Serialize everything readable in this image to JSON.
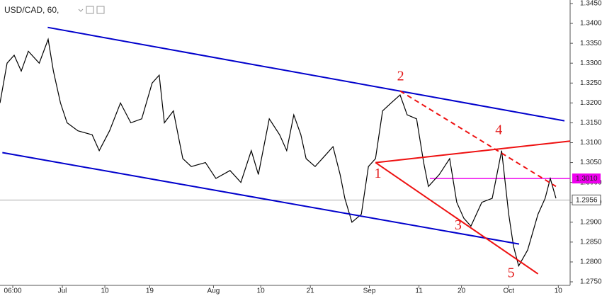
{
  "chart_data": {
    "type": "line",
    "title": "USD/CAD, 60,",
    "x": [
      -12.2,
      -10.7,
      -9.2,
      -7.7,
      -6.2,
      -3.9,
      -2.0,
      -0.9,
      0.6,
      2.0,
      4.3,
      7.3,
      8.8,
      11.0,
      13.3,
      15.5,
      17.8,
      20.0,
      21.5,
      22.6,
      24.5,
      26.5,
      28.3,
      31.3,
      33.5,
      36.5,
      38.8,
      41.0,
      42.5,
      44.8,
      47.0,
      48.5,
      50.0,
      51.5,
      52.6,
      54.5,
      56.8,
      58.3,
      59.8,
      60.8,
      62.3,
      64.3,
      65.8,
      67.3,
      68.8,
      70.6,
      72.5,
      74.0,
      76.0,
      77.5,
      78.5,
      80.8,
      83.0,
      84.5,
      86.0,
      87.5,
      89.8,
      92.0,
      94.0,
      95.5,
      96.5,
      97.6,
      99.5,
      101.7,
      103.2,
      104.3,
      105.5
    ],
    "series": [
      {
        "color": "#000000",
        "values": [
          1.32,
          1.33,
          1.332,
          1.328,
          1.333,
          1.33,
          1.336,
          1.328,
          1.32,
          1.315,
          1.313,
          1.312,
          1.308,
          1.313,
          1.32,
          1.315,
          1.316,
          1.325,
          1.327,
          1.315,
          1.318,
          1.306,
          1.304,
          1.305,
          1.301,
          1.303,
          1.3,
          1.308,
          1.302,
          1.316,
          1.312,
          1.308,
          1.317,
          1.312,
          1.306,
          1.304,
          1.307,
          1.309,
          1.302,
          1.296,
          1.29,
          1.292,
          1.304,
          1.306,
          1.318,
          1.32,
          1.322,
          1.317,
          1.316,
          1.305,
          1.299,
          1.302,
          1.306,
          1.295,
          1.291,
          1.289,
          1.295,
          1.296,
          1.308,
          1.292,
          1.284,
          1.279,
          1.283,
          1.292,
          1.296,
          1.301,
          1.296
        ]
      }
    ],
    "xlim": [
      -12.2,
      108.5
    ],
    "xticks": [
      {
        "value": -9.5,
        "label": "06:00"
      },
      {
        "value": 1,
        "label": "Jul"
      },
      10,
      {
        "value": 19.5,
        "label": "19"
      },
      {
        "value": 33,
        "label": "Aug"
      },
      {
        "value": 43,
        "label": "10"
      },
      {
        "value": 53.5,
        "label": "21"
      },
      {
        "value": 66,
        "label": "Sep"
      },
      {
        "value": 76.5,
        "label": "11"
      },
      {
        "value": 85.5,
        "label": "20"
      },
      {
        "value": 95.5,
        "label": "Oct"
      },
      {
        "value": 106,
        "label": "10"
      }
    ],
    "ylim": [
      1.275,
      1.345
    ],
    "yticks": [
      {
        "value": 1.275,
        "label": "1.2750"
      },
      {
        "value": 1.28,
        "label": "1.2800"
      },
      {
        "value": 1.285,
        "label": "1.2850"
      },
      {
        "value": 1.29,
        "label": "1.2900"
      },
      {
        "value": 1.295,
        "label": "1.2950"
      },
      {
        "value": 1.3,
        "label": "1.3000"
      },
      {
        "value": 1.305,
        "label": "1.3050"
      },
      {
        "value": 1.31,
        "label": "1.3100"
      },
      {
        "value": 1.315,
        "label": "1.3150"
      },
      {
        "value": 1.32,
        "label": "1.3200"
      },
      {
        "value": 1.325,
        "label": "1.3250"
      },
      {
        "value": 1.33,
        "label": "1.3300"
      },
      {
        "value": 1.335,
        "label": "1.3350"
      },
      {
        "value": 1.34,
        "label": "1.3400"
      },
      {
        "value": 1.345,
        "label": "1.3450"
      }
    ],
    "lines": [
      {
        "color": "#0000cc",
        "dash": false,
        "x": [
          -2.1,
          107.3
        ],
        "y": [
          1.339,
          1.3155
        ]
      },
      {
        "color": "#0000cc",
        "dash": false,
        "x": [
          -11.7,
          97.7
        ],
        "y": [
          1.3075,
          1.2845
        ]
      },
      {
        "color": "#ee1111",
        "dash": false,
        "x": [
          67.3,
          108.5
        ],
        "y": [
          1.305,
          1.3104
        ]
      },
      {
        "color": "#ee1111",
        "dash": false,
        "x": [
          67.3,
          101.7
        ],
        "y": [
          1.305,
          1.277
        ]
      },
      {
        "color": "#ee1111",
        "dash": true,
        "x": [
          72.5,
          105.5
        ],
        "y": [
          1.323,
          1.299
        ]
      }
    ],
    "levels": [
      {
        "value": 1.301,
        "label": "1.3010",
        "color": "#ee00ee",
        "from": 78.8
      },
      {
        "value": 1.2956,
        "label": "1.2956",
        "color": "#888888",
        "from": -12.2
      }
    ],
    "waves": [
      {
        "label": "1",
        "x": 67.8,
        "y": 1.302
      },
      {
        "label": "2",
        "x": 72.6,
        "y": 1.3265
      },
      {
        "label": "3",
        "x": 84.8,
        "y": 1.289
      },
      {
        "label": "4",
        "x": 93.4,
        "y": 1.313
      },
      {
        "label": "5",
        "x": 96.0,
        "y": 1.277
      }
    ]
  }
}
